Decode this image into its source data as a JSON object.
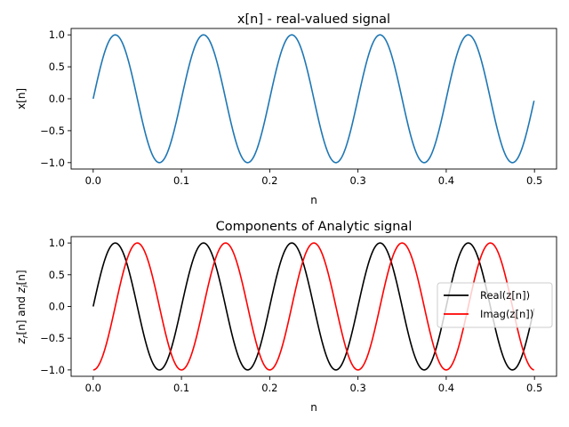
{
  "chart_data": [
    {
      "type": "line",
      "title": "x[n] - real-valued signal",
      "xlabel": "n",
      "ylabel": "x[n]",
      "xlim": [
        -0.025,
        0.525
      ],
      "ylim": [
        -1.1,
        1.1
      ],
      "xticks": [
        0.0,
        0.1,
        0.2,
        0.3,
        0.4,
        0.5
      ],
      "xtick_labels": [
        "0.0",
        "0.1",
        "0.2",
        "0.3",
        "0.4",
        "0.5"
      ],
      "yticks": [
        1.0,
        0.5,
        0.0,
        -0.5,
        -1.0
      ],
      "ytick_labels": [
        "1.0",
        "0.5",
        "0.0",
        "−0.5",
        "−1.0"
      ],
      "grid": false,
      "series": [
        {
          "kind": "sine",
          "frequency_hz": 10,
          "x_start": 0.0,
          "x_end": 0.4995,
          "color": "#1f77b4"
        }
      ]
    },
    {
      "type": "line",
      "title": "Components of Analytic signal",
      "xlabel": "n",
      "ylabel": "z_r[n] and z_i[n]",
      "ylabel_parts": {
        "z1": "z",
        "s1": "r",
        "mid": "[n] and ",
        "z2": "z",
        "s2": "i",
        "end": "[n]"
      },
      "xlim": [
        -0.025,
        0.525
      ],
      "ylim": [
        -1.1,
        1.1
      ],
      "xticks": [
        0.0,
        0.1,
        0.2,
        0.3,
        0.4,
        0.5
      ],
      "xtick_labels": [
        "0.0",
        "0.1",
        "0.2",
        "0.3",
        "0.4",
        "0.5"
      ],
      "yticks": [
        1.0,
        0.5,
        0.0,
        -0.5,
        -1.0
      ],
      "ytick_labels": [
        "1.0",
        "0.5",
        "0.0",
        "−0.5",
        "−1.0"
      ],
      "grid": false,
      "legend_position": "center-right",
      "series": [
        {
          "name": "Real(z[n])",
          "kind": "sine",
          "frequency_hz": 10,
          "x_start": 0.0,
          "x_end": 0.4995,
          "color": "#000000"
        },
        {
          "name": "Imag(z[n])",
          "kind": "negative-cosine",
          "frequency_hz": 10,
          "x_start": 0.0,
          "x_end": 0.4995,
          "color": "#ff0000"
        }
      ]
    }
  ]
}
